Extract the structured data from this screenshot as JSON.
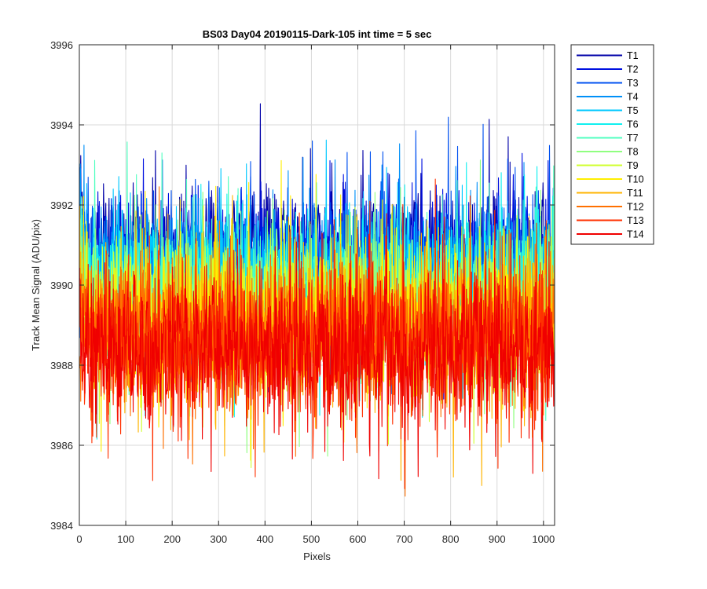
{
  "chart_data": {
    "type": "line",
    "title": "BS03 Day04 20190115-Dark-105 int time = 5 sec",
    "xlabel": "Pixels",
    "ylabel": "Track Mean Signal (ADU/pix)",
    "xlim": [
      0,
      1024
    ],
    "ylim": [
      3984,
      3996
    ],
    "xticks": [
      0,
      100,
      200,
      300,
      400,
      500,
      600,
      700,
      800,
      900,
      1000
    ],
    "yticks": [
      3984,
      3986,
      3988,
      3990,
      3992,
      3994,
      3996
    ],
    "grid": true,
    "legend_position": "outside-top-right",
    "x": {
      "start": 1,
      "end": 1024,
      "step": 1
    },
    "series": [
      {
        "name": "T1",
        "color": "#0000a8",
        "mean": 3990.9,
        "noise": 0.7
      },
      {
        "name": "T2",
        "color": "#0010e0",
        "mean": 3990.7,
        "noise": 0.72
      },
      {
        "name": "T3",
        "color": "#0050f0",
        "mean": 3990.5,
        "noise": 0.74
      },
      {
        "name": "T4",
        "color": "#0090f8",
        "mean": 3990.3,
        "noise": 0.76
      },
      {
        "name": "T5",
        "color": "#00c8ff",
        "mean": 3990.1,
        "noise": 0.78
      },
      {
        "name": "T6",
        "color": "#10f0f0",
        "mean": 3989.9,
        "noise": 0.8
      },
      {
        "name": "T7",
        "color": "#50ffc0",
        "mean": 3989.7,
        "noise": 0.82
      },
      {
        "name": "T8",
        "color": "#90ff80",
        "mean": 3989.5,
        "noise": 0.84
      },
      {
        "name": "T9",
        "color": "#d0ff30",
        "mean": 3989.3,
        "noise": 0.86
      },
      {
        "name": "T10",
        "color": "#ffee00",
        "mean": 3989.1,
        "noise": 0.88
      },
      {
        "name": "T11",
        "color": "#ffb400",
        "mean": 3988.9,
        "noise": 0.9
      },
      {
        "name": "T12",
        "color": "#ff7000",
        "mean": 3988.7,
        "noise": 0.92
      },
      {
        "name": "T13",
        "color": "#ff3000",
        "mean": 3988.5,
        "noise": 0.94
      },
      {
        "name": "T14",
        "color": "#f00000",
        "mean": 3988.4,
        "noise": 0.96
      }
    ]
  }
}
